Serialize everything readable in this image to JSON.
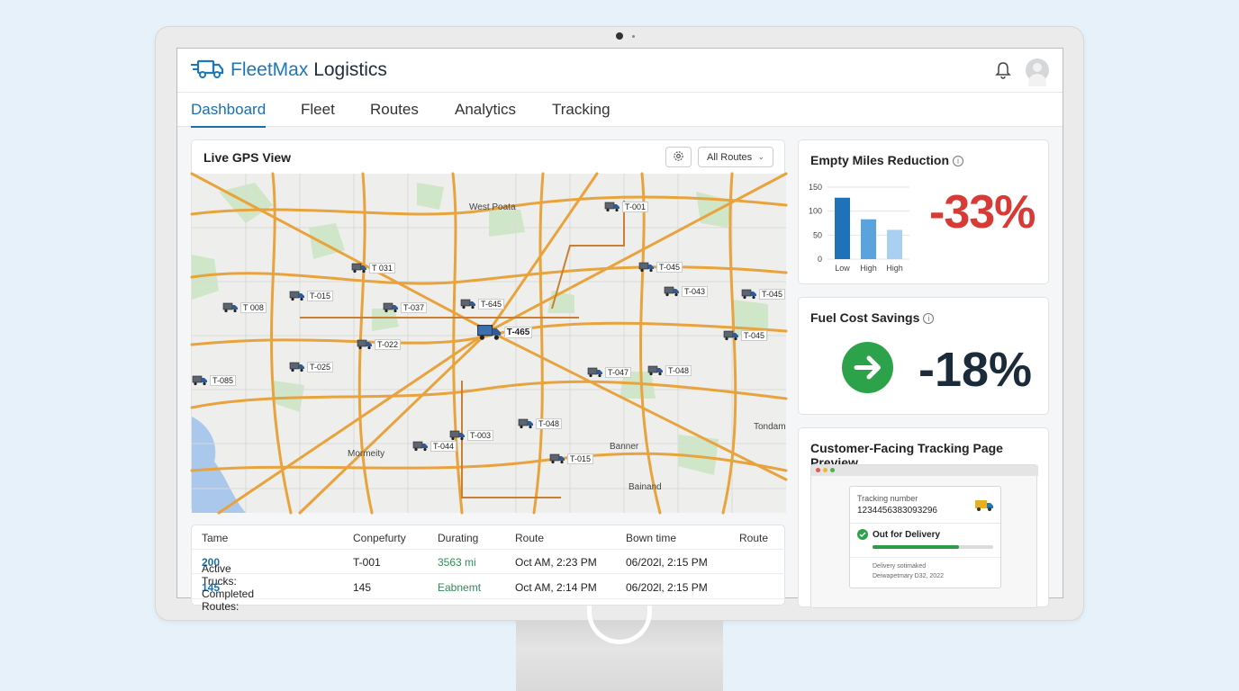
{
  "app": {
    "brand_part1": "FleetMax",
    "brand_part2": "Logistics"
  },
  "nav": {
    "tabs": [
      "Dashboard",
      "Fleet",
      "Routes",
      "Analytics",
      "Tracking"
    ],
    "active": "Dashboard"
  },
  "gps": {
    "title": "Live GPS View",
    "filter_value": "All Routes",
    "place_labels": [
      "West Poata",
      "Mormeity",
      "Banner",
      "Bainand",
      "Tondam"
    ],
    "trucks": [
      "T-001",
      "T 031",
      "T-045",
      "T-043",
      "T-045",
      "T 008",
      "T-015",
      "T-037",
      "T-645",
      "T-465",
      "T-045",
      "T-022",
      "T-047",
      "T-048",
      "T-085",
      "T-025",
      "T-048",
      "T-003",
      "T-044",
      "T-015"
    ]
  },
  "table": {
    "headers": [
      "Tame",
      "Conpefurty",
      "Durating",
      "Route",
      "Bown time",
      "Route"
    ],
    "rows": [
      {
        "label": "Active Trucks: ",
        "value": "200",
        "c2": "T-001",
        "c3": "3563 mi",
        "c4": "Oct AM, 2:23 PM",
        "c5": "06/202l, 2:15 PM"
      },
      {
        "label": "Completed Routes: ",
        "value": "145",
        "c2": "145",
        "c3": "Eabnemt",
        "c4": "Oct AM, 2:14 PM",
        "c5": "06/202l, 2:15 PM"
      }
    ]
  },
  "empty_miles": {
    "title": "Empty Miles Reduction",
    "value": "-33%",
    "chart_data": {
      "type": "bar",
      "categories": [
        "Low",
        "High",
        "High"
      ],
      "values": [
        128,
        83,
        61
      ],
      "ylim": [
        0,
        150
      ],
      "yticks": [
        "150",
        "100",
        "50",
        "0"
      ],
      "colors": [
        "#1f72b8",
        "#5aa3dc",
        "#a9d0f0"
      ]
    }
  },
  "fuel": {
    "title": "Fuel Cost Savings",
    "value": "-18%"
  },
  "tracking_preview": {
    "title": "Customer-Facing Tracking Page Preview",
    "tracking_label": "Tracking number",
    "tracking_number": "1234456383093296",
    "status": "Out for Delivery",
    "progress": 0.72,
    "delivery_label": "Delivery sotimaked",
    "delivery_date": "Deiwapetmary D32, 2022"
  },
  "colors": {
    "accent": "#1a6fae",
    "negative": "#d83b35",
    "positive": "#2ca24a"
  }
}
